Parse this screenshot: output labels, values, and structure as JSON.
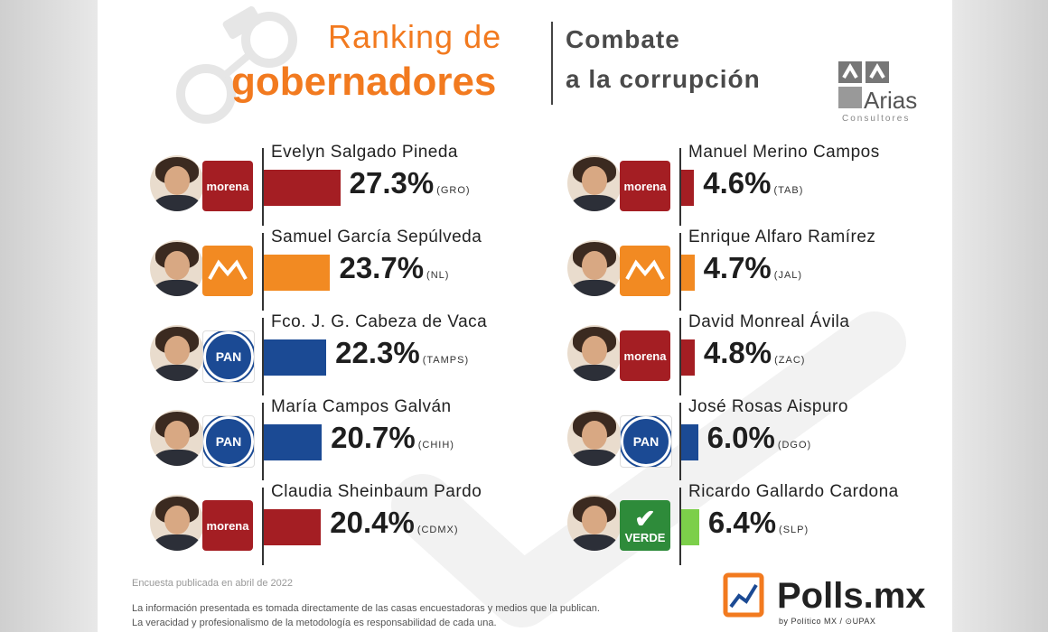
{
  "header": {
    "title_line1": "Ranking de",
    "title_line2": "gobernadores",
    "subtitle_line1": "Combate",
    "subtitle_line2": "a la corrupción"
  },
  "branding": {
    "arias_name": "Arias",
    "arias_sub": "Consultores",
    "polls_name": "Polls.mx",
    "polls_sub": "by Político MX / ⊙UPAX"
  },
  "footer": {
    "date": "Encuesta publicada en abril de 2022",
    "line1": "La información presentada es tomada directamente de las casas encuestadoras y medios que la publican.",
    "line2": "La veracidad y profesionalismo de la metodología es responsabilidad de cada una."
  },
  "colors": {
    "morena": "#a41e23",
    "mc": "#f28a22",
    "pan": "#1b4a94",
    "verde": "#7ccf4a",
    "accent": "#f27a1f"
  },
  "party_labels": {
    "morena": "morena",
    "mc": "MOVIMIENTO CIUDADANO",
    "pan": "PAN",
    "verde": "VERDE"
  },
  "chart_data": {
    "type": "bar",
    "units": "%",
    "columns": [
      {
        "entries": [
          {
            "name": "Evelyn Salgado Pineda",
            "value": 27.3,
            "label": "27.3%",
            "state": "(GRO)",
            "party": "morena"
          },
          {
            "name": "Samuel García Sepúlveda",
            "value": 23.7,
            "label": "23.7%",
            "state": "(NL)",
            "party": "mc"
          },
          {
            "name": "Fco. J. G. Cabeza de Vaca",
            "value": 22.3,
            "label": "22.3%",
            "state": "(TAMPS)",
            "party": "pan"
          },
          {
            "name": "María Campos Galván",
            "value": 20.7,
            "label": "20.7%",
            "state": "(CHIH)",
            "party": "pan"
          },
          {
            "name": "Claudia Sheinbaum Pardo",
            "value": 20.4,
            "label": "20.4%",
            "state": "(CDMX)",
            "party": "morena"
          }
        ]
      },
      {
        "entries": [
          {
            "name": "Manuel Merino Campos",
            "value": 4.6,
            "label": "4.6%",
            "state": "(TAB)",
            "party": "morena"
          },
          {
            "name": "Enrique Alfaro Ramírez",
            "value": 4.7,
            "label": "4.7%",
            "state": "(JAL)",
            "party": "mc"
          },
          {
            "name": "David Monreal Ávila",
            "value": 4.8,
            "label": "4.8%",
            "state": "(ZAC)",
            "party": "morena"
          },
          {
            "name": "José Rosas Aispuro",
            "value": 6.0,
            "label": "6.0%",
            "state": "(DGO)",
            "party": "pan"
          },
          {
            "name": "Ricardo Gallardo Cardona",
            "value": 6.4,
            "label": "6.4%",
            "state": "(SLP)",
            "party": "verde"
          }
        ]
      }
    ]
  }
}
